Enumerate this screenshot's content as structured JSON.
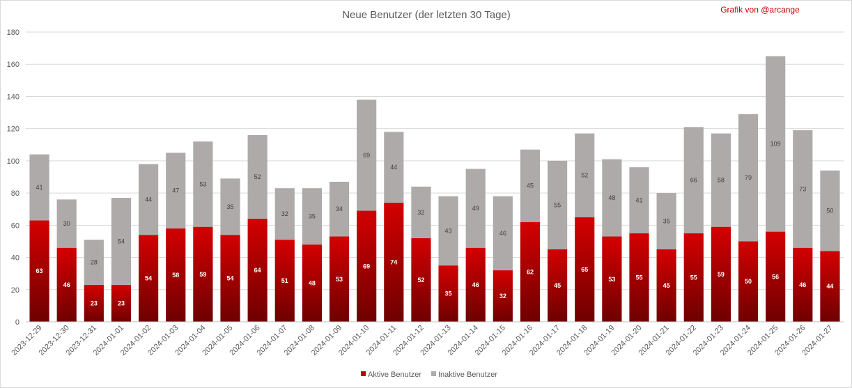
{
  "chart_data": {
    "type": "bar",
    "stacked": true,
    "title": "Neue Benutzer (der letzten 30 Tage)",
    "credit": "Grafik von @arcange",
    "categories": [
      "2023-12-29",
      "2023-12-30",
      "2023-12-31",
      "2024-01-01",
      "2024-01-02",
      "2024-01-03",
      "2024-01-04",
      "2024-01-05",
      "2024-01-06",
      "2024-01-07",
      "2024-01-08",
      "2024-01-09",
      "2024-01-10",
      "2024-01-11",
      "2024-01-12",
      "2024-01-13",
      "2024-01-14",
      "2024-01-15",
      "2024-01-16",
      "2024-01-17",
      "2024-01-18",
      "2024-01-19",
      "2024-01-20",
      "2024-01-21",
      "2024-01-22",
      "2024-01-23",
      "2024-01-24",
      "2024-01-25",
      "2024-01-26",
      "2024-01-27"
    ],
    "series": [
      {
        "name": "Aktive Benutzer",
        "color": "#c00000",
        "values": [
          63,
          46,
          23,
          23,
          54,
          58,
          59,
          54,
          64,
          51,
          48,
          53,
          69,
          74,
          52,
          35,
          46,
          32,
          62,
          45,
          65,
          53,
          55,
          45,
          55,
          59,
          50,
          56,
          46,
          44
        ]
      },
      {
        "name": "Inaktive Benutzer",
        "color": "#aeaaaa",
        "values": [
          41,
          30,
          28,
          54,
          44,
          47,
          53,
          35,
          52,
          32,
          35,
          34,
          69,
          44,
          32,
          43,
          49,
          46,
          45,
          55,
          52,
          48,
          41,
          35,
          66,
          58,
          79,
          109,
          73,
          50
        ]
      }
    ],
    "ylim": [
      0,
      180
    ],
    "yticks": [
      0,
      20,
      40,
      60,
      80,
      100,
      120,
      140,
      160,
      180
    ],
    "grid": true,
    "legend": "bottom"
  }
}
